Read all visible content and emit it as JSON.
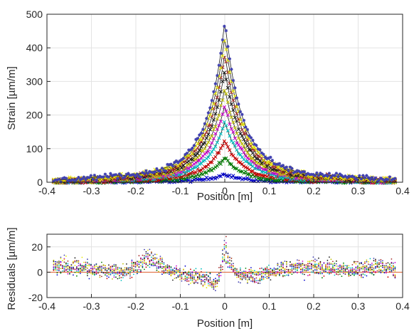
{
  "chart_data": [
    {
      "type": "line",
      "title": "",
      "xlabel": "Position [m]",
      "ylabel": "Strain [µm/m]",
      "xlim": [
        -0.4,
        0.4
      ],
      "ylim": [
        0,
        500
      ],
      "xticks": [
        -0.4,
        -0.3,
        -0.2,
        -0.1,
        0,
        0.1,
        0.2,
        0.3,
        0.4
      ],
      "yticks": [
        0,
        100,
        200,
        300,
        400,
        500
      ],
      "xtick_labels": [
        "-0.4",
        "-0.3",
        "-0.2",
        "-0.1",
        "0",
        "0.1",
        "0.2",
        "0.3",
        "0.4"
      ],
      "ytick_labels": [
        "0",
        "100",
        "200",
        "300",
        "400",
        "500"
      ],
      "grid": true,
      "fit_line_color": "#1a1a1a",
      "x_extent": [
        -0.385,
        0.385
      ],
      "x_step": 0.004,
      "series_shape": "peak at x = 0 with approximately exponential decay and a slight upward tail at |x| > 0.15",
      "series": [
        {
          "color": "#0000cc",
          "marker": "x",
          "peak": 25,
          "tail": 0,
          "noise": 3
        },
        {
          "color": "#008000",
          "marker": "x",
          "peak": 75,
          "tail": 0,
          "noise": 4
        },
        {
          "color": "#cc0000",
          "marker": "x",
          "peak": 125,
          "tail": 2,
          "noise": 4
        },
        {
          "color": "#00bfbf",
          "marker": "x",
          "peak": 180,
          "tail": 3,
          "noise": 4
        },
        {
          "color": "#cc00cc",
          "marker": "x",
          "peak": 230,
          "tail": 4,
          "noise": 4
        },
        {
          "color": "#bfbf00",
          "marker": "x",
          "peak": 280,
          "tail": 5,
          "noise": 5
        },
        {
          "color": "#1a1a1a",
          "marker": "x",
          "peak": 335,
          "tail": 6,
          "noise": 5
        },
        {
          "color": "#a52a2a",
          "marker": "x",
          "peak": 385,
          "tail": 7,
          "noise": 5
        },
        {
          "color": "#e6e600",
          "marker": "x",
          "peak": 435,
          "tail": 8,
          "noise": 6
        },
        {
          "color": "#4040b0",
          "marker": "*",
          "peak": 480,
          "tail": 9,
          "noise": 6
        }
      ]
    },
    {
      "type": "scatter",
      "title": "",
      "xlabel": "Position [m]",
      "ylabel": "Residuals [µm/m]",
      "xlim": [
        -0.4,
        0.4
      ],
      "ylim": [
        -20,
        30
      ],
      "xticks": [
        -0.4,
        -0.3,
        -0.2,
        -0.1,
        0,
        0.1,
        0.2,
        0.3,
        0.4
      ],
      "yticks": [
        -20,
        0,
        20
      ],
      "xtick_labels": [
        "-0.4",
        "-0.3",
        "-0.2",
        "-0.1",
        "0",
        "0.1",
        "0.2",
        "0.3",
        "0.4"
      ],
      "ytick_labels": [
        "-20",
        "0",
        "20"
      ],
      "grid": true,
      "zero_line_color": "#e06030",
      "x_extent": [
        -0.385,
        0.385
      ],
      "x_step": 0.004,
      "residual_pattern": [
        {
          "x": -0.38,
          "y": 5
        },
        {
          "x": -0.3,
          "y": 3
        },
        {
          "x": -0.22,
          "y": 0
        },
        {
          "x": -0.17,
          "y": 12
        },
        {
          "x": -0.12,
          "y": 0
        },
        {
          "x": -0.05,
          "y": -5
        },
        {
          "x": -0.02,
          "y": -10
        },
        {
          "x": 0,
          "y": 15
        },
        {
          "x": 0.03,
          "y": -3
        },
        {
          "x": 0.08,
          "y": -3
        },
        {
          "x": 0.12,
          "y": 2
        },
        {
          "x": 0.2,
          "y": 5
        },
        {
          "x": 0.28,
          "y": 2
        },
        {
          "x": 0.35,
          "y": 5
        },
        {
          "x": 0.38,
          "y": 2
        }
      ],
      "noise": 4,
      "series_colors": [
        "#0000cc",
        "#008000",
        "#cc0000",
        "#00bfbf",
        "#cc00cc",
        "#bfbf00",
        "#1a1a1a",
        "#a52a2a",
        "#e6e600",
        "#4040b0"
      ]
    }
  ]
}
